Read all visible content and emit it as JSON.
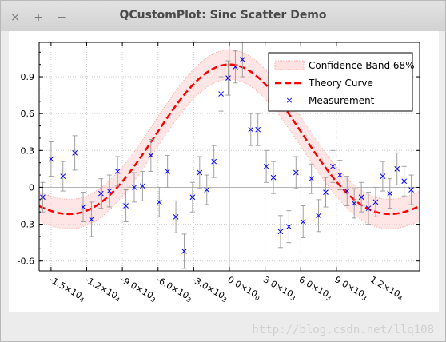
{
  "window": {
    "title": "QCustomPlot: Sinc Scatter Demo",
    "buttons": [
      "×",
      "+",
      "−"
    ]
  },
  "watermark": "http://blog.csdn.net/llq108",
  "chart_data": {
    "type": "scatter",
    "xlim": [
      -16000,
      16000
    ],
    "ylim": [
      -0.68,
      1.18
    ],
    "x_ticks": [
      -15000,
      -12000,
      -9000,
      -6000,
      -3000,
      0,
      3000,
      6000,
      9000,
      12000
    ],
    "x_tick_labels": [
      {
        "m": "-1.5",
        "e": "4"
      },
      {
        "m": "-1.2",
        "e": "4"
      },
      {
        "m": "-9.0",
        "e": "3"
      },
      {
        "m": "-6.0",
        "e": "3"
      },
      {
        "m": "-3.0",
        "e": "3"
      },
      {
        "m": "0.0",
        "e": "0"
      },
      {
        "m": "3.0",
        "e": "3"
      },
      {
        "m": "6.0",
        "e": "3"
      },
      {
        "m": "9.0",
        "e": "3"
      },
      {
        "m": "1.2",
        "e": "4"
      }
    ],
    "y_ticks": [
      -0.6,
      -0.3,
      0,
      0.3,
      0.6,
      0.9
    ],
    "y_tick_labels": [
      "-0.6",
      "-0.3",
      "0",
      "0.3",
      "0.6",
      "0.9"
    ],
    "grid": true,
    "legend": {
      "placement": "top-right",
      "entries": [
        "Confidence Band 68%",
        "Theory Curve",
        "Measurement"
      ]
    },
    "colors": {
      "band": "#ffd2d2",
      "band_edge": "#ff9999",
      "curve": "#ff0000",
      "measurement": "#0000ff",
      "error_bar": "#a0a0a0"
    },
    "confidence_band_halfwidth": 0.12,
    "x_scale": 3000,
    "measurements": [
      {
        "x": -15700,
        "y": -0.08,
        "err": 0.12
      },
      {
        "x": -15000,
        "y": 0.23,
        "err": 0.14
      },
      {
        "x": -14000,
        "y": 0.09,
        "err": 0.12
      },
      {
        "x": -13000,
        "y": 0.28,
        "err": 0.14
      },
      {
        "x": -12300,
        "y": -0.16,
        "err": 0.12
      },
      {
        "x": -11600,
        "y": -0.26,
        "err": 0.14
      },
      {
        "x": -10800,
        "y": -0.05,
        "err": 0.12
      },
      {
        "x": -10100,
        "y": -0.03,
        "err": 0.13
      },
      {
        "x": -9400,
        "y": 0.13,
        "err": 0.12
      },
      {
        "x": -8700,
        "y": -0.15,
        "err": 0.13
      },
      {
        "x": -8000,
        "y": 0.0,
        "err": 0.12
      },
      {
        "x": -7300,
        "y": 0.01,
        "err": 0.12
      },
      {
        "x": -6600,
        "y": 0.26,
        "err": 0.13
      },
      {
        "x": -5900,
        "y": -0.12,
        "err": 0.12
      },
      {
        "x": -5200,
        "y": 0.13,
        "err": 0.13
      },
      {
        "x": -4500,
        "y": -0.24,
        "err": 0.13
      },
      {
        "x": -3800,
        "y": -0.52,
        "err": 0.14
      },
      {
        "x": -3100,
        "y": -0.08,
        "err": 0.12
      },
      {
        "x": -2500,
        "y": 0.12,
        "err": 0.13
      },
      {
        "x": -1900,
        "y": -0.02,
        "err": 0.12
      },
      {
        "x": -1300,
        "y": 0.21,
        "err": 0.13
      },
      {
        "x": -700,
        "y": 0.76,
        "err": 0.14
      },
      {
        "x": -100,
        "y": 0.89,
        "err": 0.14
      },
      {
        "x": 500,
        "y": 0.98,
        "err": 0.13
      },
      {
        "x": 1100,
        "y": 1.04,
        "err": 0.14
      },
      {
        "x": 1800,
        "y": 0.47,
        "err": 0.13
      },
      {
        "x": 2400,
        "y": 0.47,
        "err": 0.13
      },
      {
        "x": 3100,
        "y": 0.17,
        "err": 0.13
      },
      {
        "x": 3700,
        "y": 0.08,
        "err": 0.13
      },
      {
        "x": 4300,
        "y": -0.36,
        "err": 0.13
      },
      {
        "x": 5000,
        "y": -0.32,
        "err": 0.13
      },
      {
        "x": 5600,
        "y": 0.12,
        "err": 0.13
      },
      {
        "x": 6200,
        "y": -0.28,
        "err": 0.13
      },
      {
        "x": 6900,
        "y": 0.07,
        "err": 0.12
      },
      {
        "x": 7500,
        "y": -0.23,
        "err": 0.13
      },
      {
        "x": 8100,
        "y": -0.04,
        "err": 0.12
      },
      {
        "x": 8700,
        "y": 0.17,
        "err": 0.13
      },
      {
        "x": 9300,
        "y": 0.1,
        "err": 0.12
      },
      {
        "x": 9900,
        "y": -0.03,
        "err": 0.12
      },
      {
        "x": 10500,
        "y": -0.13,
        "err": 0.12
      },
      {
        "x": 11100,
        "y": -0.08,
        "err": 0.12
      },
      {
        "x": 11700,
        "y": -0.17,
        "err": 0.13
      },
      {
        "x": 12300,
        "y": -0.12,
        "err": 0.12
      },
      {
        "x": 12900,
        "y": 0.09,
        "err": 0.12
      },
      {
        "x": 13500,
        "y": -0.05,
        "err": 0.12
      },
      {
        "x": 14100,
        "y": 0.15,
        "err": 0.13
      },
      {
        "x": 14700,
        "y": 0.05,
        "err": 0.12
      },
      {
        "x": 15300,
        "y": -0.02,
        "err": 0.12
      }
    ]
  }
}
